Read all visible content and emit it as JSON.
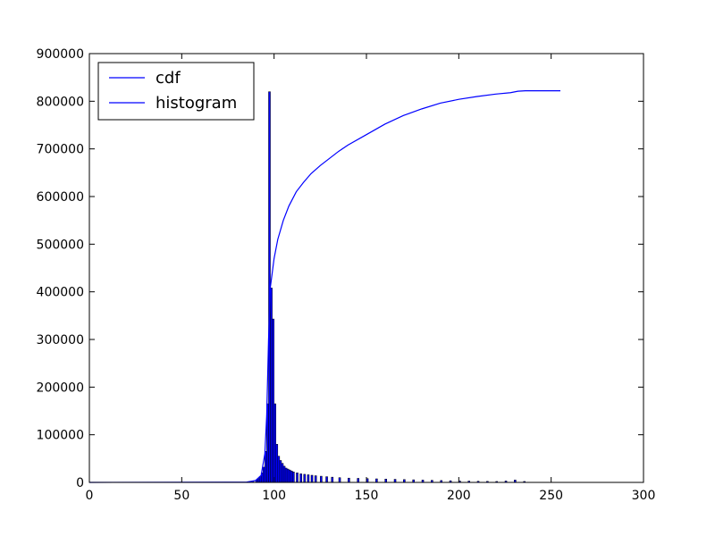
{
  "chart_data": {
    "type": "bar",
    "title": "",
    "xlabel": "",
    "ylabel": "",
    "xlim": [
      0,
      300
    ],
    "ylim": [
      0,
      900000
    ],
    "x_ticks": [
      0,
      50,
      100,
      150,
      200,
      250,
      300
    ],
    "y_ticks": [
      0,
      100000,
      200000,
      300000,
      400000,
      500000,
      600000,
      700000,
      800000,
      900000
    ],
    "grid": false,
    "legend": {
      "placement": "top-left",
      "entries": [
        {
          "label": "cdf",
          "color": "#0000ff"
        },
        {
          "label": "histogram",
          "color": "#0000ff"
        }
      ]
    },
    "series": [
      {
        "name": "histogram",
        "kind": "bar",
        "color": "#0000ff",
        "bin_width": 1,
        "x": [
          86,
          88,
          90,
          91,
          92,
          93,
          94,
          95,
          96,
          97,
          98,
          99,
          100,
          101,
          102,
          103,
          104,
          105,
          106,
          107,
          108,
          109,
          110,
          112,
          114,
          116,
          118,
          120,
          122,
          125,
          128,
          131,
          135,
          140,
          145,
          150,
          155,
          160,
          165,
          170,
          175,
          180,
          185,
          190,
          195,
          200,
          205,
          210,
          215,
          220,
          225,
          230,
          235
        ],
        "values": [
          1500,
          3000,
          5000,
          8000,
          12000,
          20000,
          32000,
          65000,
          165000,
          820000,
          408000,
          343000,
          165000,
          80000,
          55000,
          46000,
          40000,
          34000,
          30000,
          28000,
          26000,
          24000,
          22000,
          20000,
          18000,
          17000,
          16000,
          15000,
          14000,
          13000,
          12000,
          11000,
          10000,
          9000,
          8500,
          8000,
          7500,
          7000,
          6500,
          6000,
          5500,
          5000,
          4500,
          4000,
          3500,
          3000,
          2800,
          2500,
          2200,
          2000,
          3000,
          5000,
          2000
        ]
      },
      {
        "name": "cdf",
        "kind": "line",
        "color": "#0000ff",
        "x": [
          0,
          85,
          90,
          93,
          95,
          96,
          97,
          98,
          99,
          100,
          102,
          105,
          108,
          112,
          116,
          120,
          125,
          130,
          135,
          140,
          150,
          160,
          170,
          180,
          190,
          200,
          210,
          220,
          228,
          232,
          236,
          240,
          255
        ],
        "values": [
          0,
          500,
          4000,
          15000,
          60000,
          140000,
          300000,
          410000,
          440000,
          470000,
          510000,
          550000,
          580000,
          610000,
          630000,
          648000,
          665000,
          680000,
          695000,
          708000,
          730000,
          752000,
          770000,
          784000,
          796000,
          804000,
          810000,
          815000,
          818000,
          821000,
          822000,
          822000,
          822000
        ]
      }
    ]
  }
}
